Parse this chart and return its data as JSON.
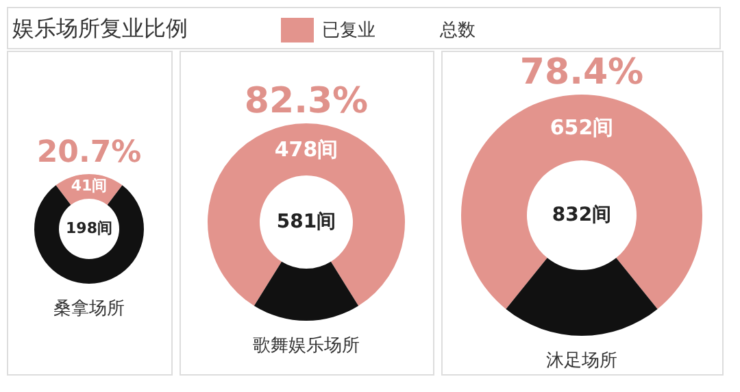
{
  "chart_data": [
    {
      "type": "donut",
      "title": "娱乐场所复业比例",
      "legend": "top",
      "categories": [
        "已复业",
        null
      ],
      "values": [
        41,
        157
      ],
      "colors": [
        "#e3948d",
        "#111111"
      ],
      "value_labels": [
        "41间",
        null
      ],
      "annotations": [
        "总数",
        "20.7%",
        "198间",
        "桑拿场所"
      ]
    },
    {
      "type": "donut",
      "categories": [
        null,
        null
      ],
      "values": [
        478,
        103
      ],
      "colors": [
        "#e3948d",
        "#111111"
      ],
      "value_labels": [
        "478间",
        null
      ],
      "annotations": [
        "82.3%",
        "581间",
        "歌舞娱乐场所"
      ]
    },
    {
      "type": "donut",
      "categories": [
        null,
        null
      ],
      "values": [
        652,
        180
      ],
      "colors": [
        "#e3948d",
        "#111111"
      ],
      "value_labels": [
        "652间",
        null
      ],
      "annotations": [
        "78.4%",
        "832间",
        "沐足场所"
      ]
    }
  ]
}
